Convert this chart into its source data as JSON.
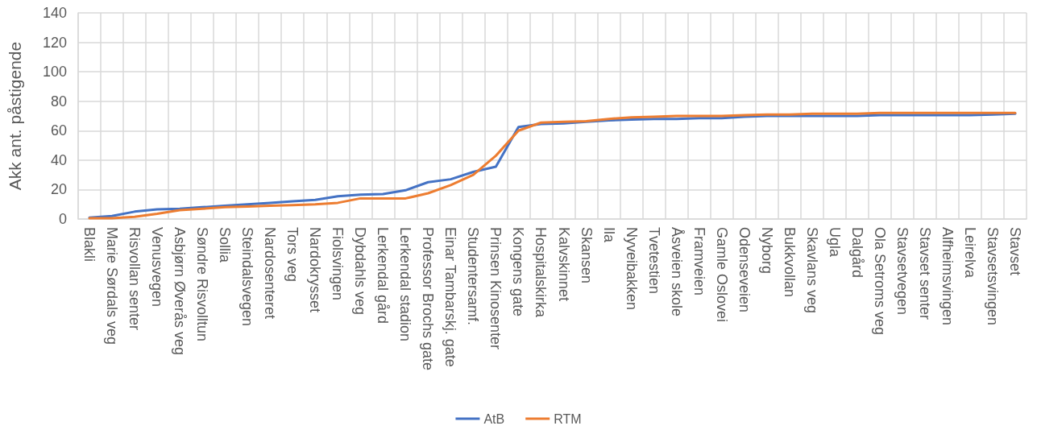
{
  "chart_data": {
    "type": "line",
    "ylabel": "Akk ant. påstigende",
    "categories": [
      "Blakli",
      "Marie Sørdals veg",
      "Risvollan senter",
      "Venusvegen",
      "Asbjørn Øverås veg",
      "Søndre Risvolltun",
      "Sollia",
      "Steindalsvegen",
      "Nardosenteret",
      "Tors veg",
      "Nardokrysset",
      "Fiolsvingen",
      "Dybdahls veg",
      "Lerkendal gård",
      "Lerkendal stadion",
      "Professor Brochs gate",
      "Einar Tambarskj. gate",
      "Studentersamf.",
      "Prinsen Kinosenter",
      "Kongens gate",
      "Hospitalskirka",
      "Kalvskinnet",
      "Skansen",
      "Ila",
      "Nyveibakken",
      "Tvetestien",
      "Åsveien skole",
      "Framveien",
      "Gamle Oslovei",
      "Odenseveien",
      "Nyborg",
      "Bukkvollan",
      "Skavlans veg",
      "Ugla",
      "Dalgård",
      "Ola Setroms veg",
      "Stavsetvegen",
      "Stavset senter",
      "Alfheimsvingen",
      "Leirelva",
      "Stavsetsvingen",
      "Stavset"
    ],
    "series": [
      {
        "name": "AtB",
        "color": "#4472c4",
        "values": [
          1,
          2,
          5,
          6.5,
          7,
          8,
          9,
          10,
          11,
          12,
          13,
          15.5,
          16.5,
          17,
          19.5,
          25,
          27,
          32,
          35.5,
          62.5,
          64.5,
          65,
          66,
          67,
          67.5,
          68,
          68,
          68.5,
          68.5,
          69.5,
          70,
          70,
          70,
          70,
          70,
          70.5,
          70.5,
          70.5,
          70.5,
          70.5,
          71,
          71.5
        ]
      },
      {
        "name": "RTM",
        "color": "#ed7d31",
        "values": [
          0.5,
          0.5,
          1.5,
          3.5,
          6,
          7,
          8,
          8.5,
          9,
          9.5,
          10,
          11,
          14,
          14,
          14,
          17.5,
          23,
          30,
          43,
          60,
          65.5,
          66,
          66.5,
          68,
          69,
          69.5,
          70,
          70,
          70,
          70.5,
          71,
          71,
          71.5,
          71.5,
          71.5,
          72,
          72,
          72,
          72,
          72,
          72,
          72
        ]
      }
    ],
    "ylim": [
      0,
      140
    ],
    "yticks": [
      0,
      20,
      40,
      60,
      80,
      100,
      120,
      140
    ],
    "grid": true,
    "legend": "bottom",
    "marker": "none",
    "line_style": "solid"
  }
}
